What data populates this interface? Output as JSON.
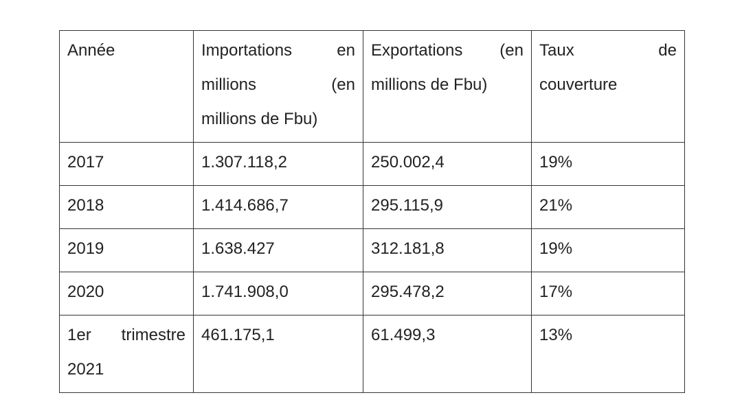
{
  "table": {
    "headers": {
      "year": "Année",
      "imports_line1": "Importations en",
      "imports_line2": "millions (en",
      "imports_line3": "millions de Fbu)",
      "exports_line1": "Exportations (en",
      "exports_line2": "millions de Fbu)",
      "coverage_line1": "Taux de",
      "coverage_line2": "couverture"
    },
    "rows": [
      {
        "year": "2017",
        "imports": "1.307.118,2",
        "exports": "250.002,4",
        "coverage": "19%"
      },
      {
        "year": "2018",
        "imports": "1.414.686,7",
        "exports": "295.115,9",
        "coverage": "21%"
      },
      {
        "year": "2019",
        "imports": "1.638.427",
        "exports": "312.181,8",
        "coverage": "19%"
      },
      {
        "year": "2020",
        "imports": "1.741.908,0",
        "exports": "295.478,2",
        "coverage": "17%"
      },
      {
        "year_line1": "1er trimestre",
        "year_line2": "2021",
        "imports": "461.175,1",
        "exports": "61.499,3",
        "coverage": "13%"
      }
    ]
  }
}
